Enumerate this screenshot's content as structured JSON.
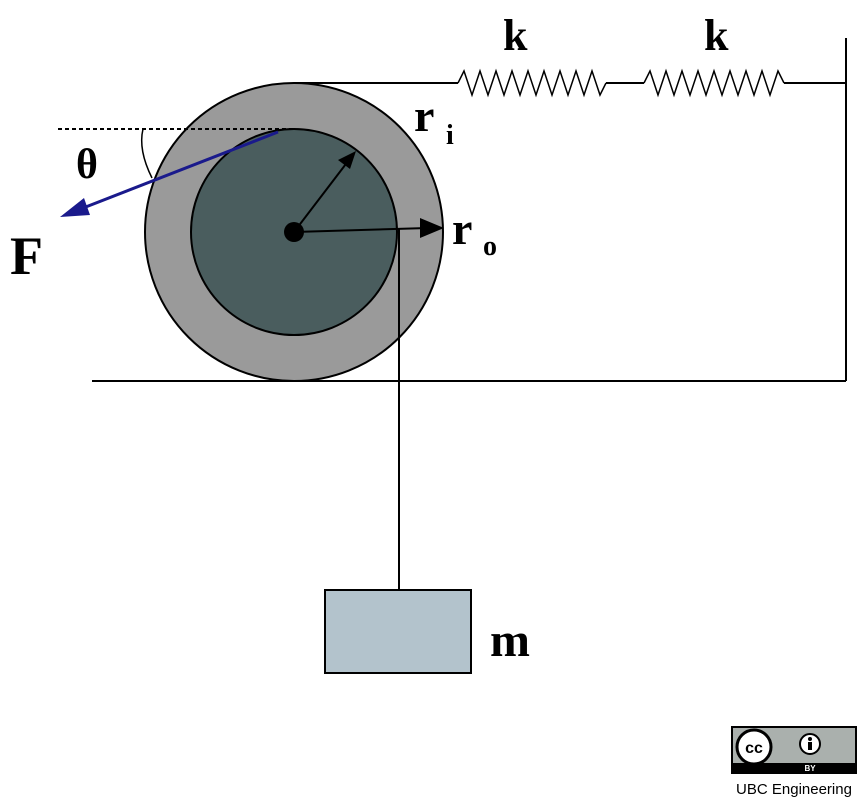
{
  "labels": {
    "spring_left": "k",
    "spring_right": "k",
    "inner_radius_letter": "r",
    "inner_radius_sub": "i",
    "outer_radius_letter": "r",
    "outer_radius_sub": "o",
    "angle": "θ",
    "force": "F",
    "mass": "m"
  },
  "license": {
    "badge_cc": "cc",
    "badge_by": "BY",
    "credit": "UBC Engineering"
  },
  "colors": {
    "outer_disk": "#9a9a9a",
    "inner_disk": "#4a5d5e",
    "mass_block": "#b3c3cc",
    "force_arrow": "#1a1a8c",
    "line": "#000000"
  }
}
